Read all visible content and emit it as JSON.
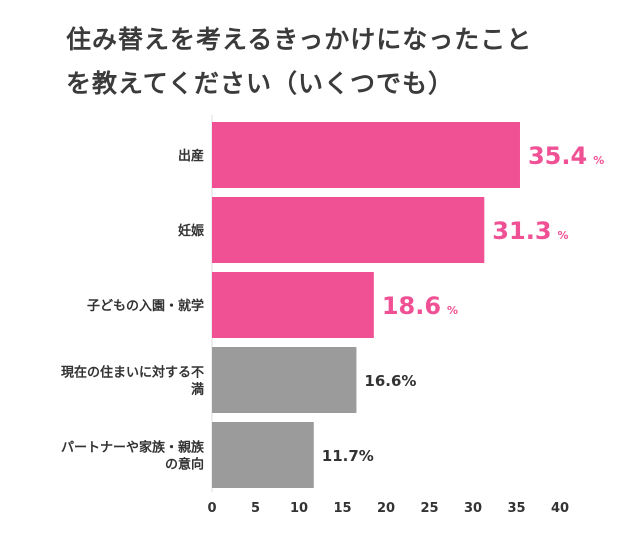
{
  "title": {
    "line1": "住み替えを考えるきっかけになったこと",
    "line2": "を教えてください（いくつでも）"
  },
  "colors": {
    "highlight": "#ef5194",
    "muted": "#9b9b9b",
    "axis": "#dddddd",
    "text": "#333333"
  },
  "chart_data": {
    "type": "bar",
    "orientation": "horizontal",
    "title": "住み替えを考えるきっかけになったことを教えてください（いくつでも）",
    "xlabel": "",
    "ylabel": "",
    "unit": "%",
    "xlim": [
      0,
      40
    ],
    "ticks": [
      0,
      5,
      10,
      15,
      20,
      25,
      30,
      35,
      40
    ],
    "categories": [
      [
        "出産"
      ],
      [
        "妊娠"
      ],
      [
        "子どもの入園・就学"
      ],
      [
        "現在の住まいに対する不",
        "満"
      ],
      [
        "パートナーや家族・親族",
        "の意向"
      ]
    ],
    "values": [
      35.4,
      31.3,
      18.6,
      16.6,
      11.7
    ],
    "highlighted": [
      true,
      true,
      true,
      false,
      false
    ],
    "value_labels": [
      "35.4",
      "31.3",
      "18.6",
      "16.6%",
      "11.7%"
    ],
    "highlight_unit": "%",
    "grid": false,
    "legend": "none"
  }
}
